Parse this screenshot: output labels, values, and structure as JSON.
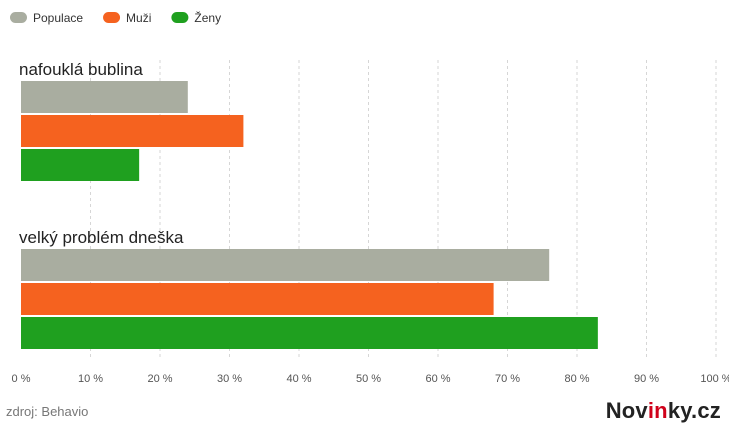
{
  "chart_data": {
    "type": "bar",
    "orientation": "horizontal",
    "categories": [
      "nafouklá bublina",
      "velký problém dneška"
    ],
    "series": [
      {
        "name": "Populace",
        "color": "#a9ada0",
        "values": [
          24,
          76
        ]
      },
      {
        "name": "Muži",
        "color": "#f5621f",
        "values": [
          32,
          68
        ]
      },
      {
        "name": "Ženy",
        "color": "#1fa01f",
        "values": [
          17,
          83
        ]
      }
    ],
    "xlim": [
      0,
      100
    ],
    "xticks": [
      0,
      10,
      20,
      30,
      40,
      50,
      60,
      70,
      80,
      90,
      100
    ],
    "xtick_labels": [
      "0 %",
      "10 %",
      "20 %",
      "30 %",
      "40 %",
      "50 %",
      "60 %",
      "70 %",
      "80 %",
      "90 %",
      "100 %"
    ],
    "grid": true,
    "legend": "top-left"
  },
  "footer": {
    "source": "zdroj: Behavio",
    "brand_prefix": "Nov",
    "brand_highlight": "in",
    "brand_suffix": "ky.cz"
  }
}
